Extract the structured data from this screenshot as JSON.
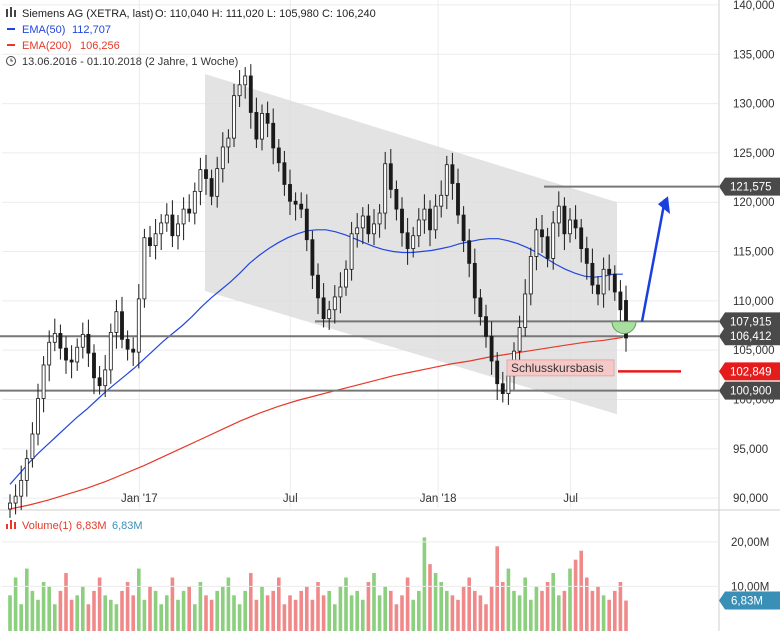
{
  "header": {
    "instrument": "Siemens AG (XETRA, last)",
    "ohlc": "O: 110,040   H: 111,020   L: 105,980   C: 106,240",
    "ema50_label": "EMA(50)",
    "ema50_value": "112,707",
    "ema200_label": "EMA(200)",
    "ema200_value": "106,256",
    "range": "13.06.2016 - 01.10.2018   (2 Jahre, 1 Woche)"
  },
  "volume_header": {
    "label": "Volume(1)",
    "v1": "6,83M",
    "v2": "6,83M"
  },
  "annotation": {
    "label": "Schlusskursbasis"
  },
  "colors": {
    "up": "#1a1a1a",
    "down": "#1a1a1a",
    "ema50": "#2346e0",
    "ema200": "#e53a2a",
    "channel": "#dcdcdc",
    "hline": "#777777",
    "arrow": "#1a3fe0",
    "vol_up": "#8ccf7e",
    "vol_down": "#f08a8a",
    "tag_dark": "#4a4a4a",
    "tag_red": "#e51c1c",
    "tag_vol": "#3a8fb7"
  },
  "chart_data": {
    "type": "candlestick",
    "title": "Siemens AG (XETRA, last)",
    "x_ticks": [
      "Jan '17",
      "Jul",
      "Jan '18",
      "Jul"
    ],
    "y_ticks": [
      "90,000",
      "95,000",
      "100,000",
      "105,000",
      "110,000",
      "115,000",
      "120,000",
      "125,000",
      "130,000",
      "135,000",
      "140,000"
    ],
    "ylim": [
      89,
      140.5
    ],
    "levels": [
      {
        "name": "top",
        "value": 121.575,
        "label": "121,575"
      },
      {
        "name": "mid",
        "value": 107.915,
        "label": "107,915"
      },
      {
        "name": "close",
        "value": 106.412,
        "label": "106,412"
      },
      {
        "name": "stop",
        "value": 102.849,
        "label": "102,849"
      },
      {
        "name": "bottom",
        "value": 100.9,
        "label": "100,900"
      }
    ],
    "volume_ticks": [
      "10,00M",
      "20,00M"
    ],
    "volume_last": "6,83M",
    "channel": {
      "upper": [
        [
          0.0,
          133.0
        ],
        [
          1.0,
          120.0
        ]
      ],
      "lower": [
        [
          0.0,
          111.0
        ],
        [
          1.0,
          98.5
        ]
      ]
    },
    "closes": [
      89.5,
      90.2,
      91.8,
      94.0,
      96.5,
      100.1,
      103.5,
      105.8,
      106.7,
      105.2,
      104.0,
      103.8,
      105.3,
      106.6,
      104.7,
      102.2,
      101.4,
      103.0,
      106.8,
      108.9,
      106.1,
      105.1,
      104.8,
      110.2,
      116.4,
      115.6,
      116.8,
      117.9,
      118.7,
      116.6,
      117.8,
      119.3,
      118.9,
      121.1,
      123.3,
      122.4,
      120.6,
      123.4,
      125.6,
      126.5,
      130.8,
      131.9,
      132.8,
      129.1,
      126.4,
      129.0,
      128.0,
      125.5,
      124.0,
      121.8,
      120.1,
      119.8,
      119.3,
      116.2,
      112.6,
      110.3,
      108.2,
      109.1,
      110.4,
      111.4,
      113.2,
      116.8,
      117.4,
      118.6,
      116.8,
      117.8,
      118.9,
      123.9,
      121.3,
      119.3,
      116.9,
      115.3,
      116.6,
      118.2,
      119.3,
      117.2,
      119.6,
      120.7,
      123.8,
      121.9,
      118.7,
      116.1,
      113.8,
      110.3,
      108.4,
      106.4,
      103.9,
      101.6,
      100.6,
      102.4,
      104.9,
      107.3,
      110.7,
      114.5,
      117.2,
      116.5,
      114.3,
      117.9,
      119.6,
      116.8,
      118.2,
      117.4,
      115.3,
      113.8,
      111.6,
      110.7,
      113.2,
      112.7,
      110.9,
      109.1,
      106.24
    ],
    "ema50": [
      91.4,
      92.5,
      93.6,
      94.6,
      95.5,
      96.4,
      97.3,
      98.2,
      99.0,
      99.9,
      100.8,
      101.6,
      102.4,
      103.2,
      104.1,
      105.0,
      105.9,
      106.7,
      107.5,
      108.4,
      109.4,
      110.3,
      111.1,
      111.9,
      112.8,
      113.8,
      114.6,
      115.3,
      115.9,
      116.4,
      116.8,
      117.1,
      117.2,
      117.2,
      117.0,
      116.7,
      116.3,
      115.9,
      115.5,
      115.2,
      115.0,
      114.9,
      114.9,
      115.0,
      115.1,
      115.3,
      115.5,
      115.8,
      116.0,
      116.2,
      116.3,
      116.3,
      116.1,
      115.8,
      115.4,
      114.9,
      114.3,
      113.7,
      113.2,
      112.8,
      112.5,
      112.4,
      112.5,
      112.7,
      112.7
    ],
    "ema200": [
      88.9,
      89.3,
      89.8,
      90.4,
      91.0,
      91.7,
      92.5,
      93.3,
      94.2,
      95.1,
      96.0,
      96.9,
      97.8,
      98.6,
      99.3,
      99.9,
      100.4,
      100.9,
      101.4,
      101.9,
      102.4,
      102.8,
      103.2,
      103.6,
      103.9,
      104.3,
      104.6,
      104.9,
      105.2,
      105.5,
      105.8,
      106.0,
      106.3
    ],
    "volume": [
      8,
      12,
      6,
      14,
      9,
      7,
      11,
      10,
      6,
      9,
      13,
      7,
      8,
      10,
      6,
      9,
      12,
      8,
      7,
      6,
      9,
      11,
      8,
      14,
      7,
      10,
      9,
      6,
      8,
      12,
      7,
      9,
      10,
      6,
      11,
      8,
      7,
      9,
      10,
      12,
      8,
      6,
      9,
      13,
      7,
      10,
      8,
      9,
      12,
      6,
      8,
      7,
      9,
      10,
      7,
      11,
      8,
      9,
      6,
      10,
      12,
      8,
      9,
      7,
      11,
      13,
      8,
      10,
      9,
      6,
      8,
      12,
      7,
      9,
      21,
      15,
      13,
      11,
      9,
      8,
      7,
      10,
      12,
      9,
      8,
      6,
      10,
      19,
      11,
      14,
      9,
      8,
      12,
      7,
      10,
      9,
      11,
      13,
      8,
      9,
      14,
      16,
      18,
      12,
      9,
      10,
      8,
      7,
      9,
      11,
      6.83
    ]
  }
}
